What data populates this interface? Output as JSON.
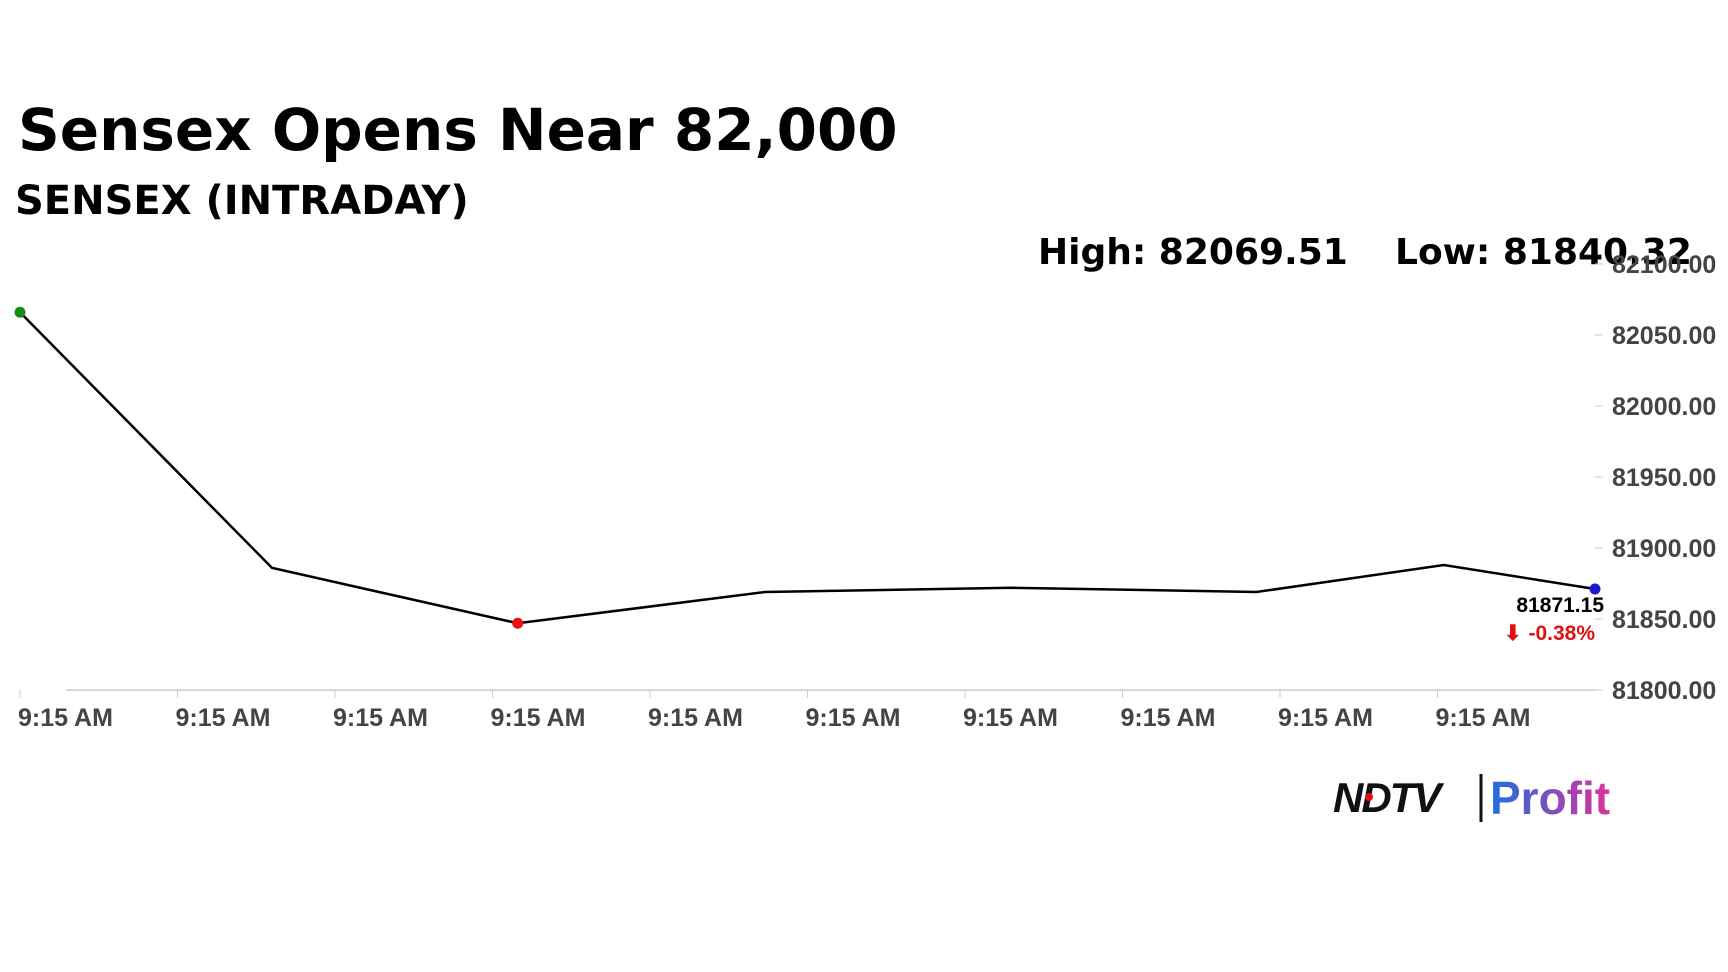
{
  "chart_data": {
    "type": "line",
    "title": "Sensex Opens Near 82,000",
    "subtitle": "SENSEX (INTRADAY)",
    "high": "High: 82069.51",
    "low": "Low: 81840.32",
    "x": [
      0,
      1.6,
      3.16,
      4.73,
      6.3,
      7.85,
      9.04,
      10
    ],
    "series": [
      {
        "name": "SENSEX",
        "color": "#000000",
        "values": [
          82066,
          81886,
          81847,
          81869,
          81872,
          81869,
          81888,
          81871.15
        ]
      }
    ],
    "markers": [
      {
        "index": 0,
        "color": "#1a8a1a"
      },
      {
        "index": 2,
        "color": "#ee1111"
      },
      {
        "index": 7,
        "color": "#1a1acc"
      }
    ],
    "last_value": 81871.15,
    "change": "-0.38%",
    "xlim": [
      0,
      10
    ],
    "xticks": [
      {
        "value": 0,
        "label": "9:15 AM"
      },
      {
        "value": 1,
        "label": "9:15 AM"
      },
      {
        "value": 2,
        "label": "9:15 AM"
      },
      {
        "value": 3,
        "label": "9:15 AM"
      },
      {
        "value": 4,
        "label": "9:15 AM"
      },
      {
        "value": 5,
        "label": "9:15 AM"
      },
      {
        "value": 6,
        "label": "9:15 AM"
      },
      {
        "value": 7,
        "label": "9:15 AM"
      },
      {
        "value": 8,
        "label": "9:15 AM"
      },
      {
        "value": 9,
        "label": "9:15 AM"
      }
    ],
    "ylim": [
      81800,
      82100
    ],
    "yticks": [
      {
        "value": 81800,
        "label": "81800.00"
      },
      {
        "value": 81850,
        "label": "81850.00"
      },
      {
        "value": 81900,
        "label": "81900.00"
      },
      {
        "value": 81950,
        "label": "81950.00"
      },
      {
        "value": 82000,
        "label": "82000.00"
      },
      {
        "value": 82050,
        "label": "82050.00"
      },
      {
        "value": 82100,
        "label": "82100.00"
      }
    ],
    "logo": {
      "brand": "NDTV",
      "product": "Profit"
    }
  }
}
